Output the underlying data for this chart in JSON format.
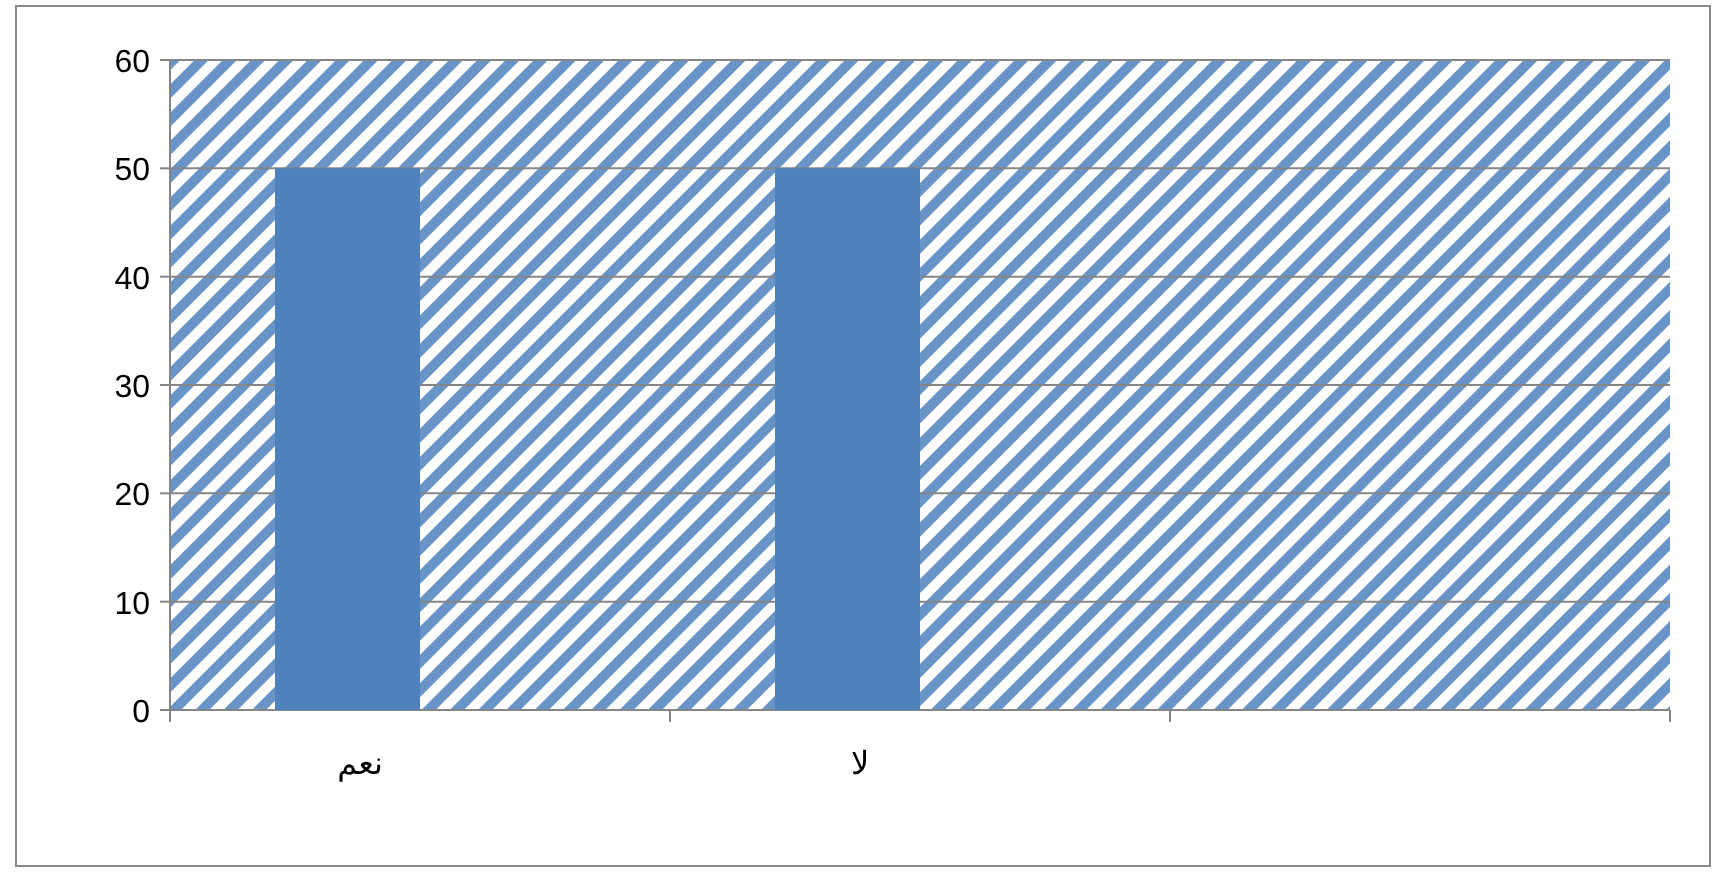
{
  "chart_data": {
    "type": "bar",
    "categories": [
      "نعم",
      "لا",
      null
    ],
    "values": [
      50,
      50,
      null
    ],
    "color": "#4f81bd",
    "ylim": [
      0,
      60
    ],
    "yticks": [
      0,
      10,
      20,
      30,
      40,
      50,
      60
    ],
    "grid": "y"
  }
}
